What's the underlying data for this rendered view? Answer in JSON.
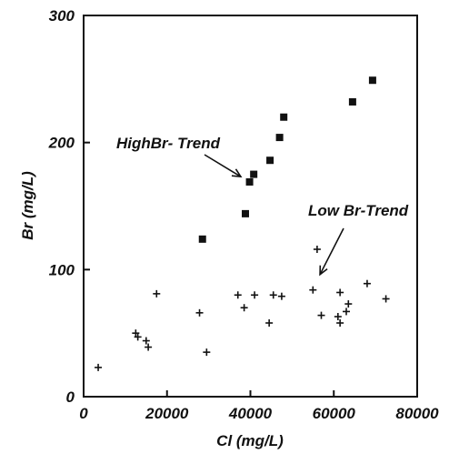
{
  "chart_data": {
    "type": "scatter",
    "xlabel": "Cl (mg/L)",
    "ylabel": "Br (mg/L)",
    "xlim": [
      0,
      80000
    ],
    "ylim": [
      0,
      300
    ],
    "x_ticks": [
      "0",
      "20000",
      "40000",
      "60000",
      "80000"
    ],
    "y_ticks": [
      "0",
      "100",
      "200",
      "300"
    ],
    "grid": false,
    "series": [
      {
        "marker": "square",
        "color": "#111111",
        "points": [
          [
            28500,
            124
          ],
          [
            38800,
            144
          ],
          [
            39800,
            169
          ],
          [
            40800,
            175
          ],
          [
            44700,
            186
          ],
          [
            47000,
            204
          ],
          [
            48000,
            220
          ],
          [
            64500,
            232
          ],
          [
            69300,
            249
          ]
        ]
      },
      {
        "marker": "plus",
        "color": "#111111",
        "points": [
          [
            3500,
            23
          ],
          [
            12500,
            50
          ],
          [
            13000,
            47
          ],
          [
            15000,
            44
          ],
          [
            15500,
            39
          ],
          [
            17500,
            81
          ],
          [
            27800,
            66
          ],
          [
            29500,
            35
          ],
          [
            37000,
            80
          ],
          [
            38500,
            70
          ],
          [
            41000,
            80
          ],
          [
            44500,
            58
          ],
          [
            45500,
            80
          ],
          [
            47500,
            79
          ],
          [
            55000,
            84
          ],
          [
            56000,
            116
          ],
          [
            57000,
            64
          ],
          [
            61500,
            82
          ],
          [
            61000,
            63
          ],
          [
            61500,
            58
          ],
          [
            63000,
            67
          ],
          [
            63500,
            73
          ],
          [
            68000,
            89
          ],
          [
            72500,
            77
          ]
        ]
      }
    ],
    "annotations": [
      {
        "text": "HighBr- Trend",
        "target": [
          39000,
          166
        ]
      },
      {
        "text": "Low Br-Trend",
        "target": [
          58000,
          89
        ]
      }
    ]
  }
}
